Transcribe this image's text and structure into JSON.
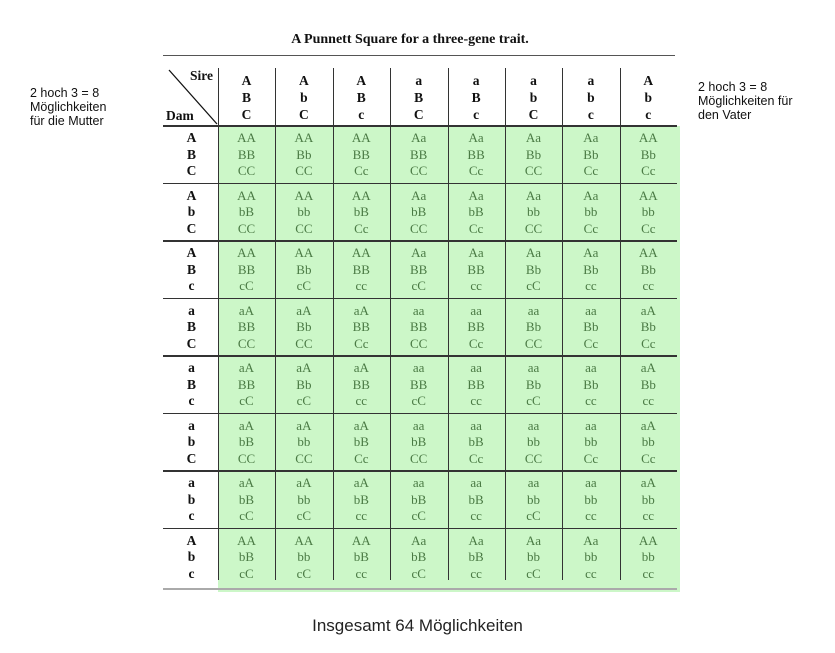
{
  "title": "A Punnett Square for a three-gene trait.",
  "left_note": "2 hoch 3 = 8\nMöglichkeiten\nfür die Mutter",
  "right_note": "2 hoch 3 = 8\nMöglichkeiten für\nden Vater",
  "footer": "Insgesamt 64 Möglichkeiten",
  "corner": {
    "sire": "Sire",
    "dam": "Dam"
  },
  "highlight_color": "#ccf7c8",
  "sire": [
    [
      "A",
      "B",
      "C"
    ],
    [
      "A",
      "b",
      "C"
    ],
    [
      "A",
      "B",
      "c"
    ],
    [
      "a",
      "B",
      "C"
    ],
    [
      "a",
      "B",
      "c"
    ],
    [
      "a",
      "b",
      "C"
    ],
    [
      "a",
      "b",
      "c"
    ],
    [
      "A",
      "b",
      "c"
    ]
  ],
  "dam": [
    [
      "A",
      "B",
      "C"
    ],
    [
      "A",
      "b",
      "C"
    ],
    [
      "A",
      "B",
      "c"
    ],
    [
      "a",
      "B",
      "C"
    ],
    [
      "a",
      "B",
      "c"
    ],
    [
      "a",
      "b",
      "C"
    ],
    [
      "a",
      "b",
      "c"
    ],
    [
      "A",
      "b",
      "c"
    ]
  ],
  "cells": [
    [
      [
        "AA",
        "BB",
        "CC"
      ],
      [
        "AA",
        "Bb",
        "CC"
      ],
      [
        "AA",
        "BB",
        "Cc"
      ],
      [
        "Aa",
        "BB",
        "CC"
      ],
      [
        "Aa",
        "BB",
        "Cc"
      ],
      [
        "Aa",
        "Bb",
        "CC"
      ],
      [
        "Aa",
        "Bb",
        "Cc"
      ],
      [
        "AA",
        "Bb",
        "Cc"
      ]
    ],
    [
      [
        "AA",
        "bB",
        "CC"
      ],
      [
        "AA",
        "bb",
        "CC"
      ],
      [
        "AA",
        "bB",
        "Cc"
      ],
      [
        "Aa",
        "bB",
        "CC"
      ],
      [
        "Aa",
        "bB",
        "Cc"
      ],
      [
        "Aa",
        "bb",
        "CC"
      ],
      [
        "Aa",
        "bb",
        "Cc"
      ],
      [
        "AA",
        "bb",
        "Cc"
      ]
    ],
    [
      [
        "AA",
        "BB",
        "cC"
      ],
      [
        "AA",
        "Bb",
        "cC"
      ],
      [
        "AA",
        "BB",
        "cc"
      ],
      [
        "Aa",
        "BB",
        "cC"
      ],
      [
        "Aa",
        "BB",
        "cc"
      ],
      [
        "Aa",
        "Bb",
        "cC"
      ],
      [
        "Aa",
        "Bb",
        "cc"
      ],
      [
        "AA",
        "Bb",
        "cc"
      ]
    ],
    [
      [
        "aA",
        "BB",
        "CC"
      ],
      [
        "aA",
        "Bb",
        "CC"
      ],
      [
        "aA",
        "BB",
        "Cc"
      ],
      [
        "aa",
        "BB",
        "CC"
      ],
      [
        "aa",
        "BB",
        "Cc"
      ],
      [
        "aa",
        "Bb",
        "CC"
      ],
      [
        "aa",
        "Bb",
        "Cc"
      ],
      [
        "aA",
        "Bb",
        "Cc"
      ]
    ],
    [
      [
        "aA",
        "BB",
        "cC"
      ],
      [
        "aA",
        "Bb",
        "cC"
      ],
      [
        "aA",
        "BB",
        "cc"
      ],
      [
        "aa",
        "BB",
        "cC"
      ],
      [
        "aa",
        "BB",
        "cc"
      ],
      [
        "aa",
        "Bb",
        "cC"
      ],
      [
        "aa",
        "Bb",
        "cc"
      ],
      [
        "aA",
        "Bb",
        "cc"
      ]
    ],
    [
      [
        "aA",
        "bB",
        "CC"
      ],
      [
        "aA",
        "bb",
        "CC"
      ],
      [
        "aA",
        "bB",
        "Cc"
      ],
      [
        "aa",
        "bB",
        "CC"
      ],
      [
        "aa",
        "bB",
        "Cc"
      ],
      [
        "aa",
        "bb",
        "CC"
      ],
      [
        "aa",
        "bb",
        "Cc"
      ],
      [
        "aA",
        "bb",
        "Cc"
      ]
    ],
    [
      [
        "aA",
        "bB",
        "cC"
      ],
      [
        "aA",
        "bb",
        "cC"
      ],
      [
        "aA",
        "bB",
        "cc"
      ],
      [
        "aa",
        "bB",
        "cC"
      ],
      [
        "aa",
        "bB",
        "cc"
      ],
      [
        "aa",
        "bb",
        "cC"
      ],
      [
        "aa",
        "bb",
        "cc"
      ],
      [
        "aA",
        "bb",
        "cc"
      ]
    ],
    [
      [
        "AA",
        "bB",
        "cC"
      ],
      [
        "AA",
        "bb",
        "cC"
      ],
      [
        "AA",
        "bB",
        "cc"
      ],
      [
        "Aa",
        "bB",
        "cC"
      ],
      [
        "Aa",
        "bB",
        "cc"
      ],
      [
        "Aa",
        "bb",
        "cC"
      ],
      [
        "Aa",
        "bb",
        "cc"
      ],
      [
        "AA",
        "bb",
        "cc"
      ]
    ]
  ]
}
